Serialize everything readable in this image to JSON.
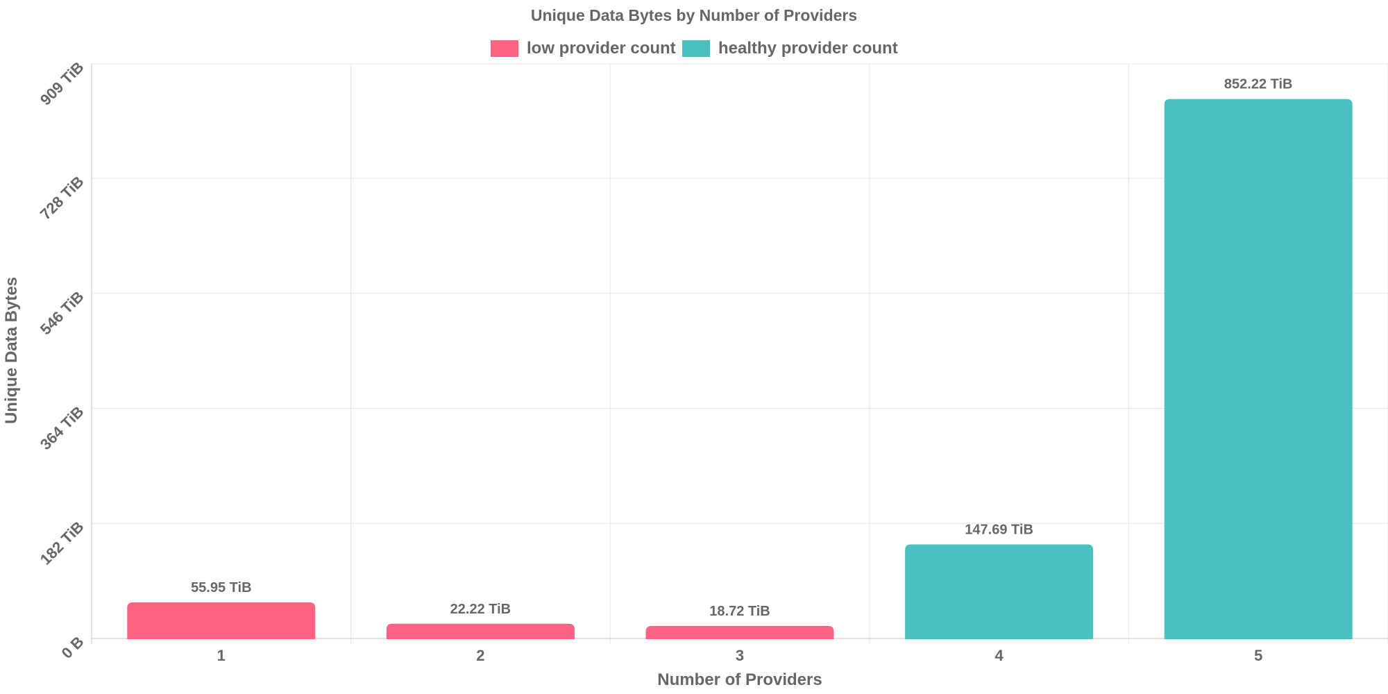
{
  "chart_data": {
    "type": "bar",
    "title": "Unique Data Bytes by Number of Providers",
    "xlabel": "Number of Providers",
    "ylabel": "Unique Data Bytes",
    "categories": [
      "1",
      "2",
      "3",
      "4",
      "5"
    ],
    "values": [
      55.95,
      22.22,
      18.72,
      147.69,
      852.22
    ],
    "value_unit": "TiB",
    "data_labels": [
      "55.95 TiB",
      "22.22 TiB",
      "18.72 TiB",
      "147.69 TiB",
      "852.22 TiB"
    ],
    "series_by_bar": [
      "low provider count",
      "low provider count",
      "low provider count",
      "healthy provider count",
      "healthy provider count"
    ],
    "legend": [
      {
        "name": "low provider count",
        "color": "#ff6384"
      },
      {
        "name": "healthy provider count",
        "color": "#4bc0c0"
      }
    ],
    "legend_position": "top",
    "y_ticks": [
      "0 B",
      "182 TiB",
      "364 TiB",
      "546 TiB",
      "728 TiB",
      "909 TiB"
    ],
    "y_tick_values": [
      0,
      182,
      364,
      546,
      728,
      909
    ],
    "ylim": [
      0,
      909
    ],
    "grid": true
  }
}
